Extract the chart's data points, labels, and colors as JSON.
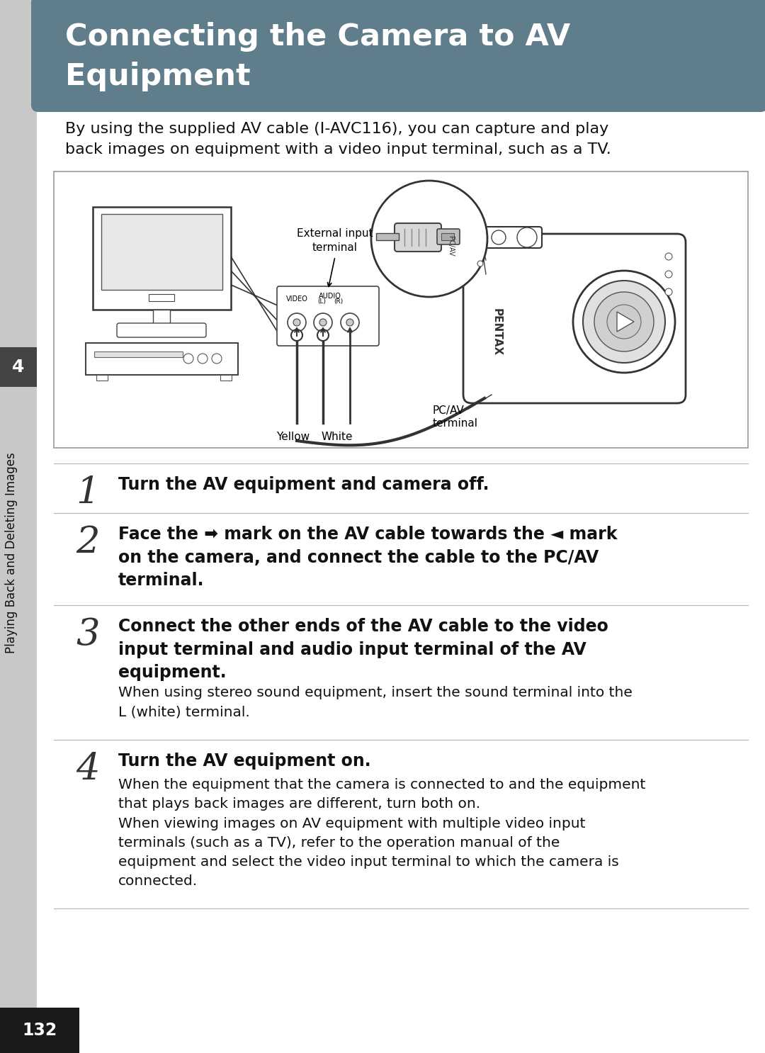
{
  "title_line1": "Connecting the Camera to AV",
  "title_line2": "Equipment",
  "title_bg_color": "#607d8b",
  "title_text_color": "#ffffff",
  "page_bg_color": "#f0f0f0",
  "content_bg_color": "#ffffff",
  "left_bar_color": "#c8c8c8",
  "left_bar_width": 52,
  "sidebar_text": "Playing Back and Deleting Images",
  "chapter_num": "4",
  "chapter_num_bg": "#444444",
  "chapter_num_color": "#ffffff",
  "page_num": "132",
  "page_num_bg": "#1a1a1a",
  "page_num_color": "#ffffff",
  "intro_text": "By using the supplied AV cable (I-AVC116), you can capture and play\nback images on equipment with a video input terminal, such as a TV.",
  "steps": [
    {
      "num": "1",
      "bold_text": "Turn the AV equipment and camera off.",
      "normal_text": ""
    },
    {
      "num": "2",
      "bold_text": "Face the ➡ mark on the AV cable towards the ◄ mark\non the camera, and connect the cable to the PC/AV\nterminal.",
      "normal_text": ""
    },
    {
      "num": "3",
      "bold_text": "Connect the other ends of the AV cable to the video\ninput terminal and audio input terminal of the AV\nequipment.",
      "normal_text": "When using stereo sound equipment, insert the sound terminal into the\nL (white) terminal."
    },
    {
      "num": "4",
      "bold_text": "Turn the AV equipment on.",
      "normal_text": "When the equipment that the camera is connected to and the equipment\nthat plays back images are different, turn both on.\nWhen viewing images on AV equipment with multiple video input\nterminals (such as a TV), refer to the operation manual of the\nequipment and select the video input terminal to which the camera is\nconnected."
    }
  ]
}
